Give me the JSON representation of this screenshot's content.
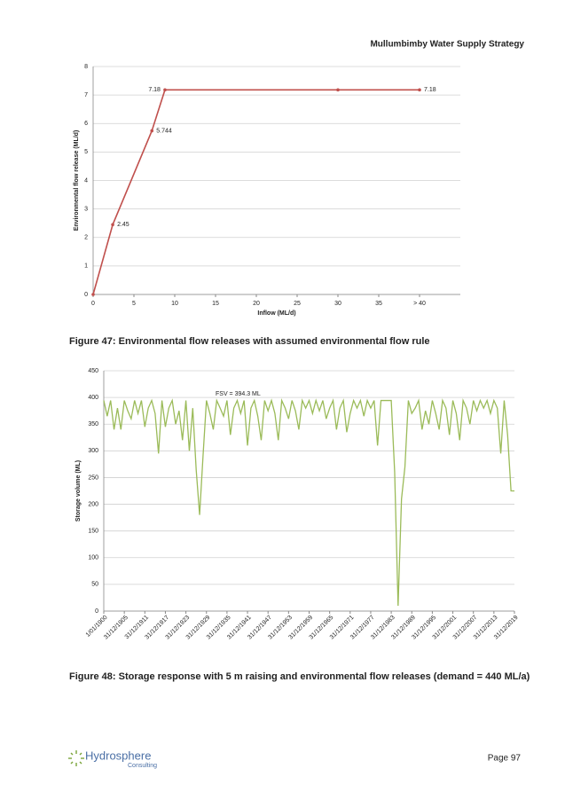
{
  "header": {
    "title": "Mullumbimby Water Supply Strategy"
  },
  "chart_data": [
    {
      "type": "line",
      "x_label": "Inflow (ML/d)",
      "y_label": "Environmental flow release (ML/d)",
      "x": [
        0,
        2.4,
        7.2,
        8.8,
        30,
        40
      ],
      "values": [
        0,
        2.45,
        5.744,
        7.18,
        7.18,
        7.18
      ],
      "value_labels": [
        null,
        "2.45",
        "5.744",
        "7.18",
        null,
        "7.18"
      ],
      "color": "#c0504d",
      "xlim": [
        0,
        45
      ],
      "xticks": [
        0,
        5,
        10,
        15,
        20,
        25,
        30,
        35,
        {
          "value": 40,
          "label": "> 40"
        }
      ],
      "ylim": [
        0,
        8
      ],
      "yticks": [
        0,
        1,
        2,
        3,
        4,
        5,
        6,
        7,
        8
      ],
      "grid": true
    },
    {
      "type": "line",
      "y_label": "Storage volume (ML)",
      "annotation": "FSV = 394.3 ML",
      "categories": [
        "1/01/1900",
        null,
        null,
        null,
        null,
        null,
        "31/12/1905",
        null,
        null,
        null,
        null,
        null,
        "31/12/1911",
        null,
        null,
        null,
        null,
        null,
        "31/12/1917",
        null,
        null,
        null,
        null,
        null,
        "31/12/1923",
        null,
        null,
        null,
        null,
        null,
        "31/12/1929",
        null,
        null,
        null,
        null,
        null,
        "31/12/1935",
        null,
        null,
        null,
        null,
        null,
        "31/12/1941",
        null,
        null,
        null,
        null,
        null,
        "31/12/1947",
        null,
        null,
        null,
        null,
        null,
        "31/12/1953",
        null,
        null,
        null,
        null,
        null,
        "31/12/1959",
        null,
        null,
        null,
        null,
        null,
        "31/12/1965",
        null,
        null,
        null,
        null,
        null,
        "31/12/1971",
        null,
        null,
        null,
        null,
        null,
        "31/12/1977",
        null,
        null,
        null,
        null,
        null,
        "31/12/1983",
        null,
        null,
        null,
        null,
        null,
        "31/12/1989",
        null,
        null,
        null,
        null,
        null,
        "31/12/1995",
        null,
        null,
        null,
        null,
        null,
        "31/12/2001",
        null,
        null,
        null,
        null,
        null,
        "31/12/2007",
        null,
        null,
        null,
        null,
        null,
        "31/12/2013",
        null,
        null,
        null,
        null,
        null,
        "31/12/2019"
      ],
      "series": [
        {
          "name": "Storage volume",
          "color": "#9bbb59",
          "values": [
            394.3,
            365,
            394.3,
            340,
            380,
            340,
            394.3,
            375,
            360,
            394.3,
            370,
            394.3,
            345,
            380,
            394.3,
            370,
            295,
            394.3,
            345,
            380,
            394.3,
            350,
            375,
            320,
            394.3,
            300,
            380,
            265,
            180,
            290,
            394.3,
            370,
            340,
            394.3,
            380,
            365,
            394.3,
            330,
            380,
            394.3,
            370,
            394.3,
            310,
            380,
            394.3,
            365,
            320,
            394.3,
            375,
            394.3,
            370,
            320,
            394.3,
            380,
            360,
            394.3,
            375,
            340,
            394.3,
            380,
            394.3,
            370,
            394.3,
            375,
            394.3,
            360,
            380,
            394.3,
            340,
            380,
            394.3,
            335,
            370,
            394.3,
            380,
            394.3,
            365,
            394.3,
            380,
            394.3,
            310,
            394.3,
            394.3,
            394.3,
            394.3,
            260,
            10,
            210,
            270,
            394.3,
            370,
            380,
            394.3,
            340,
            375,
            350,
            394.3,
            370,
            340,
            394.3,
            380,
            330,
            394.3,
            370,
            320,
            394.3,
            380,
            350,
            394.3,
            375,
            394.3,
            380,
            394.3,
            370,
            394.3,
            380,
            295,
            394.3,
            330,
            225,
            225
          ]
        }
      ],
      "ylim": [
        0,
        450
      ],
      "yticks": [
        0,
        50,
        100,
        150,
        200,
        250,
        300,
        350,
        400,
        450
      ],
      "grid": true
    }
  ],
  "captions": [
    "Figure 47: Environmental flow releases with assumed environmental flow rule",
    "Figure 48: Storage response with 5 m raising and environmental flow releases (demand = 440 ML/a)"
  ],
  "footer": {
    "logo": "Hydrosphere",
    "logo_sub": "Consulting",
    "page": "Page 97"
  }
}
